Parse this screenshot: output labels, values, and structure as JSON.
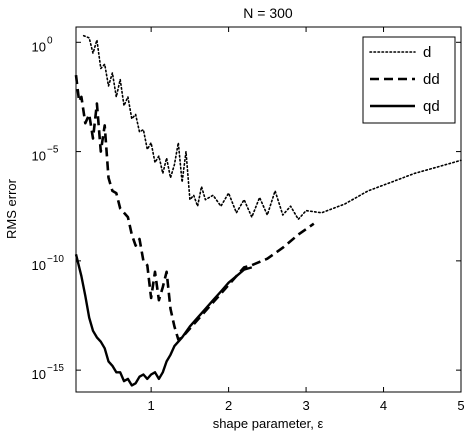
{
  "chart_data": {
    "type": "line",
    "title": "N = 300",
    "xlabel": "shape parameter, ε",
    "ylabel": "RMS error",
    "xlim": [
      0.03,
      5
    ],
    "ylim_exp": [
      -16,
      0.7
    ],
    "yscale": "log",
    "grid": false,
    "legend_position": "top-right",
    "x_ticks": [
      {
        "value": 1,
        "label": "1"
      },
      {
        "value": 2,
        "label": "2"
      },
      {
        "value": 3,
        "label": "3"
      },
      {
        "value": 4,
        "label": "4"
      },
      {
        "value": 5,
        "label": "5"
      }
    ],
    "y_ticks": [
      {
        "exp": 0,
        "base": "10",
        "sup": "0"
      },
      {
        "exp": -5,
        "base": "10",
        "sup": "−5"
      },
      {
        "exp": -10,
        "base": "10",
        "sup": "−10"
      },
      {
        "exp": -15,
        "base": "10",
        "sup": "−15"
      }
    ],
    "series": [
      {
        "name": "d",
        "style": "dotted",
        "x": [
          0.13,
          0.2,
          0.25,
          0.3,
          0.35,
          0.4,
          0.45,
          0.5,
          0.55,
          0.6,
          0.65,
          0.7,
          0.75,
          0.8,
          0.85,
          0.9,
          0.95,
          1.0,
          1.05,
          1.1,
          1.15,
          1.2,
          1.25,
          1.3,
          1.35,
          1.4,
          1.45,
          1.5,
          1.55,
          1.6,
          1.65,
          1.7,
          1.8,
          1.9,
          2.0,
          2.1,
          2.2,
          2.3,
          2.4,
          2.5,
          2.6,
          2.7,
          2.8,
          2.9,
          3.0,
          3.2,
          3.5,
          3.8,
          4.1,
          4.4,
          4.7,
          5.0
        ],
        "y_exp": [
          0.3,
          0.2,
          -0.5,
          0.1,
          -1.2,
          -1.0,
          -2.0,
          -1.4,
          -2.5,
          -1.7,
          -2.9,
          -2.5,
          -3.5,
          -3.3,
          -4.1,
          -4.0,
          -4.9,
          -4.6,
          -5.5,
          -5.2,
          -6.0,
          -5.3,
          -6.2,
          -5.6,
          -4.6,
          -6.4,
          -5.0,
          -7.2,
          -7.0,
          -7.5,
          -6.6,
          -7.2,
          -7.0,
          -7.5,
          -6.9,
          -7.8,
          -7.2,
          -8.0,
          -7.1,
          -7.9,
          -6.8,
          -7.9,
          -7.5,
          -8.1,
          -7.7,
          -7.8,
          -7.4,
          -6.8,
          -6.4,
          -6.0,
          -5.7,
          -5.4
        ]
      },
      {
        "name": "dd",
        "style": "dashed",
        "x": [
          0.03,
          0.07,
          0.1,
          0.15,
          0.2,
          0.25,
          0.3,
          0.35,
          0.4,
          0.45,
          0.5,
          0.55,
          0.6,
          0.65,
          0.7,
          0.75,
          0.8,
          0.85,
          0.9,
          0.95,
          1.0,
          1.05,
          1.1,
          1.15,
          1.2,
          1.25,
          1.3,
          1.35,
          1.4,
          2.2,
          2.3,
          2.5,
          2.7,
          2.9,
          3.1
        ],
        "y_exp": [
          -1.5,
          -2.7,
          -2.5,
          -3.7,
          -3.3,
          -4.4,
          -2.8,
          -5.0,
          -3.8,
          -6.2,
          -6.8,
          -6.9,
          -7.6,
          -7.8,
          -8.0,
          -8.8,
          -9.3,
          -9.0,
          -10.0,
          -10.2,
          -11.7,
          -10.5,
          -11.8,
          -11.2,
          -10.5,
          -12.2,
          -13.0,
          -13.6,
          -13.5,
          -10.3,
          -10.2,
          -9.9,
          -9.4,
          -8.8,
          -8.3
        ]
      },
      {
        "name": "qd",
        "style": "solid",
        "x": [
          0.03,
          0.1,
          0.15,
          0.2,
          0.25,
          0.3,
          0.35,
          0.4,
          0.45,
          0.5,
          0.55,
          0.6,
          0.65,
          0.7,
          0.75,
          0.8,
          0.85,
          0.9,
          0.95,
          1.0,
          1.05,
          1.1,
          1.15,
          1.2,
          1.25,
          1.3,
          1.4,
          1.5,
          1.6,
          1.7,
          1.8,
          1.9,
          2.0,
          2.1,
          2.2,
          2.3
        ],
        "y_exp": [
          -9.7,
          -10.7,
          -11.6,
          -12.6,
          -13.2,
          -13.5,
          -13.7,
          -14.0,
          -14.6,
          -14.8,
          -15.1,
          -15.1,
          -15.5,
          -15.4,
          -15.7,
          -15.6,
          -15.3,
          -15.2,
          -15.4,
          -15.2,
          -15.1,
          -15.4,
          -15.1,
          -14.6,
          -14.3,
          -13.9,
          -13.5,
          -13.0,
          -12.6,
          -12.2,
          -11.8,
          -11.4,
          -11.0,
          -10.7,
          -10.4,
          -10.3
        ]
      }
    ]
  }
}
